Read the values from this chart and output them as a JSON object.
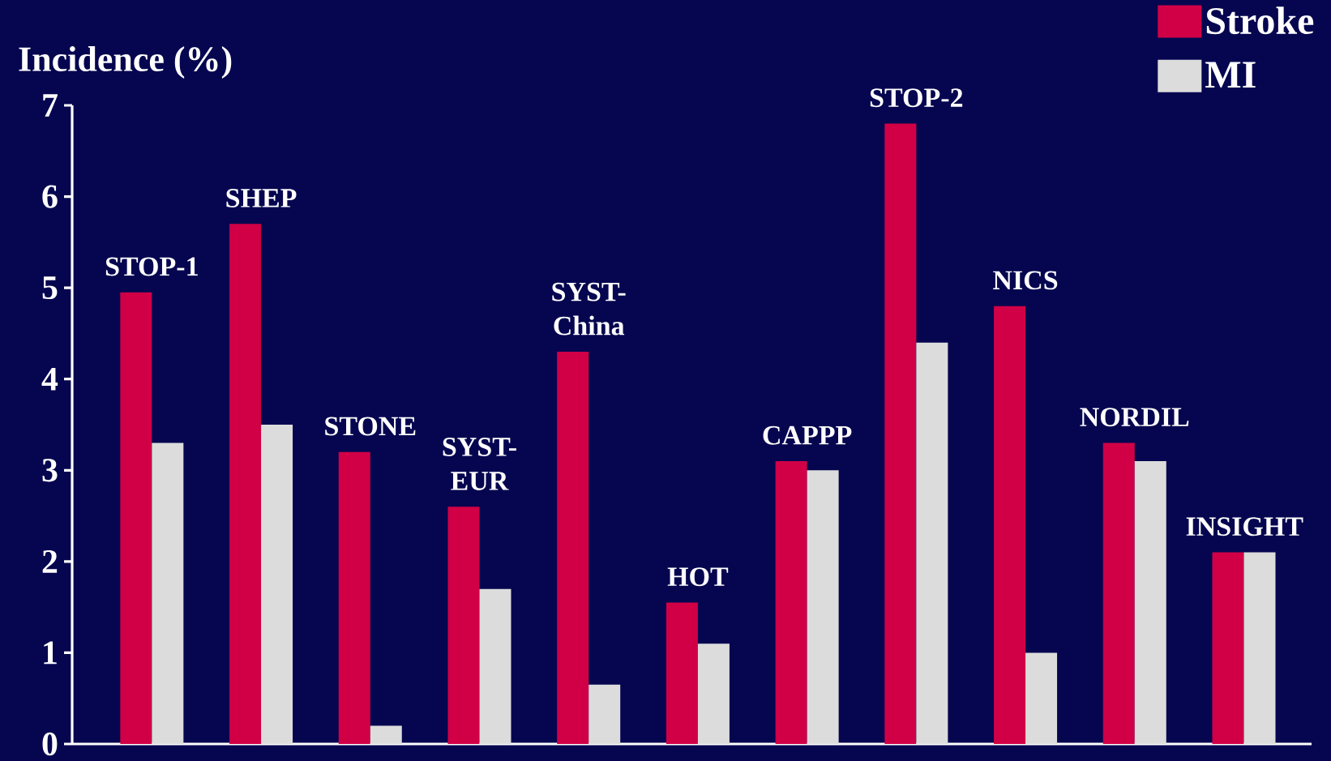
{
  "chart_data": {
    "type": "bar",
    "ylabel": "Incidence (%)",
    "categories": [
      "STOP-1",
      "SHEP",
      "STONE",
      "SYST-EUR",
      "SYST-China",
      "HOT",
      "CAPPP",
      "STOP-2",
      "NICS",
      "NORDIL",
      "INSIGHT"
    ],
    "series": [
      {
        "name": "Stroke",
        "color": "#d10046",
        "values": [
          4.95,
          5.7,
          3.2,
          2.6,
          4.3,
          1.55,
          3.1,
          6.8,
          4.8,
          3.3,
          2.1
        ]
      },
      {
        "name": "MI",
        "color": "#dcdcdc",
        "values": [
          3.3,
          3.5,
          0.2,
          1.7,
          0.65,
          1.1,
          3.0,
          4.4,
          1.0,
          3.1,
          2.1
        ]
      }
    ],
    "ylim": [
      0,
      7
    ],
    "yticks": [
      0,
      1,
      2,
      3,
      4,
      5,
      6,
      7
    ],
    "legend": "top right"
  }
}
